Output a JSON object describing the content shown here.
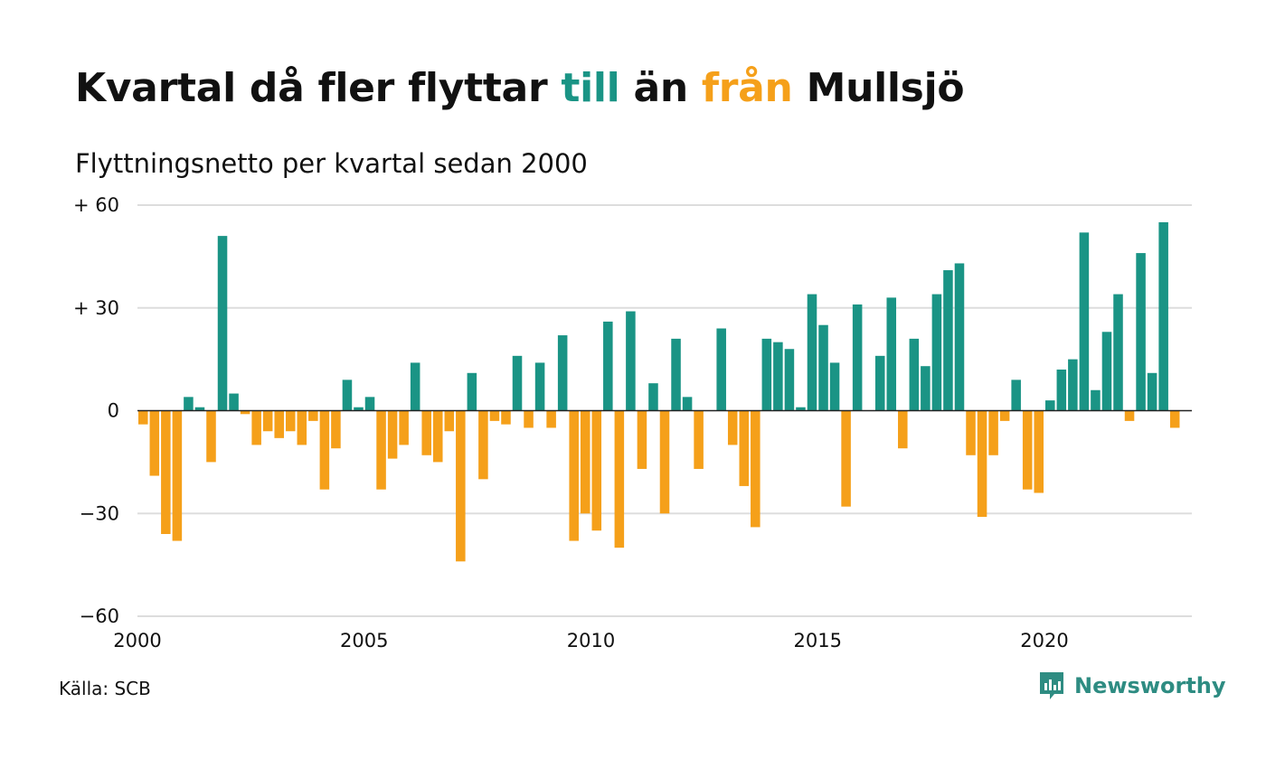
{
  "title": {
    "part1": "Kvartal då fler flyttar ",
    "till": "till",
    "part2": " än ",
    "fran": "från",
    "part3": " Mullsjö"
  },
  "subtitle": "Flyttningsnetto per kvartal sedan 2000",
  "source": "Källa: SCB",
  "brand": {
    "name": "Newsworthy",
    "icon": "newsworthy-logo-icon"
  },
  "colors": {
    "positive": "#1a9485",
    "negative": "#f5a01a",
    "till": "#1a9485",
    "fran": "#f5a01a"
  },
  "chart_data": {
    "type": "bar",
    "title": "Kvartal då fler flyttar till än från Mullsjö",
    "subtitle": "Flyttningsnetto per kvartal sedan 2000",
    "ylim": [
      -60,
      60
    ],
    "yticks": [
      {
        "value": 60,
        "label": "+ 60"
      },
      {
        "value": 30,
        "label": "+ 30"
      },
      {
        "value": 0,
        "label": "0"
      },
      {
        "value": -30,
        "label": "−30"
      },
      {
        "value": -60,
        "label": "−60"
      }
    ],
    "xticks": [
      {
        "value": 2000,
        "label": "2000"
      },
      {
        "value": 2005,
        "label": "2005"
      },
      {
        "value": 2010,
        "label": "2010"
      },
      {
        "value": 2015,
        "label": "2015"
      },
      {
        "value": 2020,
        "label": "2020"
      }
    ],
    "xlim": [
      2000,
      2023.25
    ],
    "grid": true,
    "start_year": 2000,
    "periods_per_year": 4,
    "values": [
      -4,
      -19,
      -36,
      -38,
      4,
      1,
      -15,
      51,
      5,
      -1,
      -10,
      -6,
      -8,
      -6,
      -10,
      -3,
      -23,
      -11,
      9,
      1,
      4,
      -23,
      -14,
      -10,
      14,
      -13,
      -15,
      -6,
      -44,
      11,
      -20,
      -3,
      -4,
      16,
      -5,
      14,
      -5,
      22,
      -38,
      -30,
      -35,
      26,
      -40,
      29,
      -17,
      8,
      -30,
      21,
      4,
      -17,
      0,
      24,
      -10,
      -22,
      -34,
      21,
      20,
      18,
      1,
      34,
      25,
      14,
      -28,
      31,
      0,
      16,
      33,
      -11,
      21,
      13,
      34,
      41,
      43,
      -13,
      -31,
      -13,
      -3,
      9,
      -23,
      -24,
      3,
      12,
      15,
      52,
      6,
      23,
      34,
      -3,
      46,
      11,
      55,
      -5
    ]
  }
}
